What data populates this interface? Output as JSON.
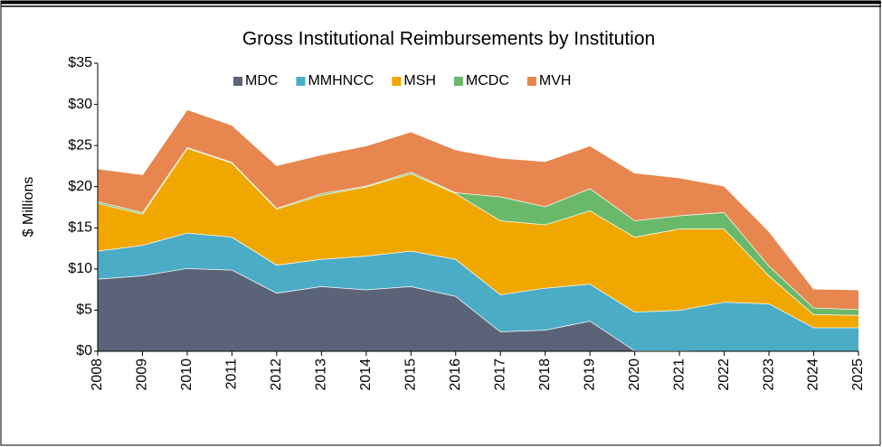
{
  "chart_data": {
    "type": "stacked-area",
    "title": "Gross Institutional  Reimbursements by Institution",
    "ylabel": "$ Millions",
    "categories": [
      "2008",
      "2009",
      "2010",
      "2011",
      "2012",
      "2013",
      "2014",
      "2015",
      "2016",
      "2017",
      "2018",
      "2019",
      "2020",
      "2021",
      "2022",
      "2023",
      "2024",
      "2025"
    ],
    "series": [
      {
        "name": "MDC",
        "color": "#5a6378",
        "values": [
          8.8,
          9.2,
          10.1,
          9.9,
          7.1,
          7.9,
          7.5,
          7.9,
          6.7,
          2.4,
          2.6,
          3.7,
          0.1,
          0.1,
          0,
          0,
          0,
          0
        ]
      },
      {
        "name": "MMHNCC",
        "color": "#4bacc6",
        "values": [
          3.4,
          3.7,
          4.3,
          4.0,
          3.4,
          3.3,
          4.1,
          4.3,
          4.5,
          4.5,
          5.1,
          4.5,
          4.7,
          4.9,
          6.0,
          5.8,
          2.9,
          2.9
        ]
      },
      {
        "name": "MSH",
        "color": "#f0a800",
        "values": [
          5.8,
          3.8,
          10.3,
          9.0,
          6.8,
          7.8,
          8.4,
          9.4,
          8.0,
          9.0,
          7.7,
          8.9,
          9.1,
          9.9,
          8.9,
          3.4,
          1.6,
          1.5
        ]
      },
      {
        "name": "MCDC",
        "color": "#6ab96a",
        "values": [
          0.2,
          0.2,
          0.1,
          0.1,
          0.1,
          0.2,
          0.1,
          0.2,
          0.1,
          2.9,
          2.2,
          2.7,
          2.0,
          1.6,
          2.0,
          1.2,
          0.8,
          0.7
        ]
      },
      {
        "name": "MVH",
        "color": "#e8864f",
        "values": [
          4.0,
          4.6,
          4.6,
          4.5,
          5.2,
          4.7,
          4.9,
          4.9,
          5.2,
          4.7,
          5.5,
          5.2,
          5.8,
          4.6,
          3.2,
          4.2,
          2.3,
          2.4
        ]
      }
    ],
    "ylim": [
      0,
      35
    ],
    "yticks": [
      {
        "value": 0,
        "label": "$0"
      },
      {
        "value": 5,
        "label": "$5"
      },
      {
        "value": 10,
        "label": "$10"
      },
      {
        "value": 15,
        "label": "$15"
      },
      {
        "value": 20,
        "label": "$20"
      },
      {
        "value": 25,
        "label": "$25"
      },
      {
        "value": 30,
        "label": "$30"
      },
      {
        "value": 35,
        "label": "$35"
      }
    ],
    "legend": "top"
  }
}
